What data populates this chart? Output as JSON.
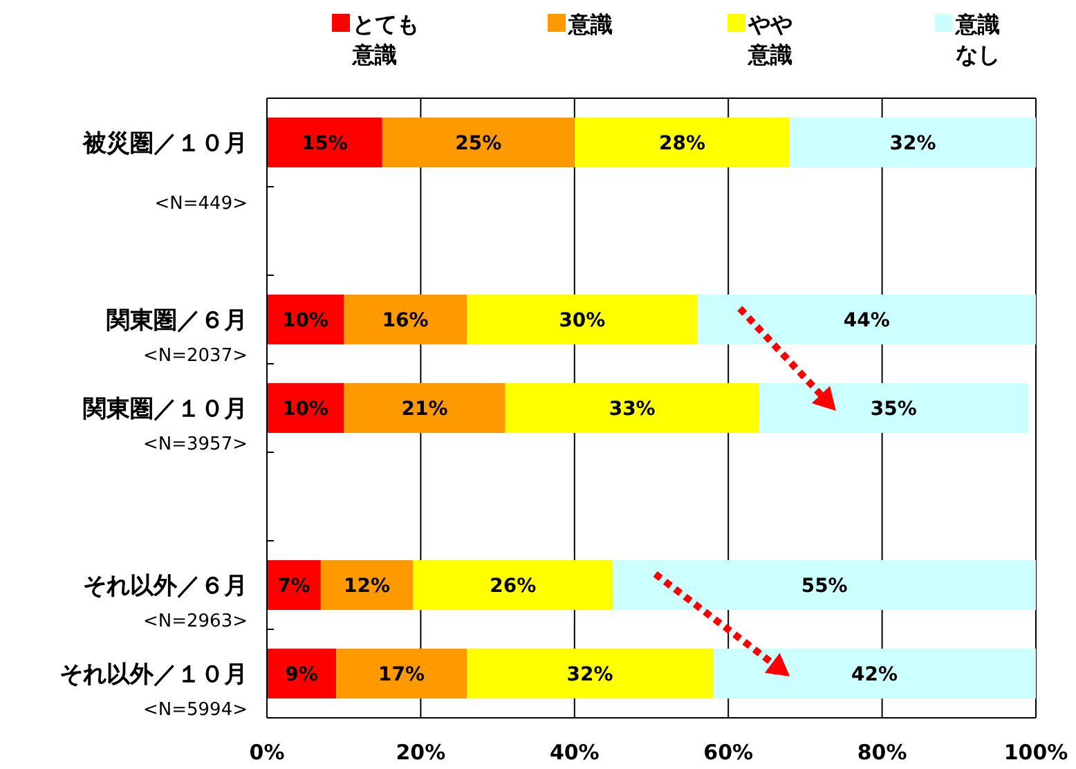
{
  "chart_data": {
    "type": "bar",
    "orientation": "horizontal",
    "stacked": true,
    "categories": [
      "被災圏／１０月\n<N=449>",
      null,
      "関東圏／６月\n<N=2037>",
      "関東圏／１０月\n<N=3957>",
      null,
      "それ以外／６月\n<N=2963>",
      "それ以外／１０月\n<N=5994>"
    ],
    "series": [
      {
        "name": "とても意識",
        "color": "#ff0000",
        "values": [
          15,
          null,
          10,
          10,
          null,
          7,
          9
        ],
        "value_labels": [
          "15%",
          null,
          "10%",
          "10%",
          null,
          "7%",
          "9%"
        ]
      },
      {
        "name": "意識",
        "color": "#ff9900",
        "values": [
          25,
          null,
          16,
          21,
          null,
          12,
          17
        ],
        "value_labels": [
          "25%",
          null,
          "16%",
          "21%",
          null,
          "12%",
          "17%"
        ]
      },
      {
        "name": "やや意識",
        "color": "#ffff00",
        "values": [
          28,
          null,
          30,
          33,
          null,
          26,
          32
        ],
        "value_labels": [
          "28%",
          null,
          "30%",
          "33%",
          null,
          "26%",
          "32%"
        ]
      },
      {
        "name": "意識なし",
        "color": "#ccffff",
        "values": [
          32,
          null,
          44,
          35,
          null,
          55,
          42
        ],
        "value_labels": [
          "32%",
          null,
          "44%",
          "35%",
          null,
          "55%",
          "42%"
        ]
      }
    ],
    "xlim": [
      0,
      100
    ],
    "xticks": [
      {
        "value": 0,
        "label": "0%"
      },
      {
        "value": 20,
        "label": "20%"
      },
      {
        "value": 40,
        "label": "40%"
      },
      {
        "value": 60,
        "label": "60%"
      },
      {
        "value": 80,
        "label": "80%"
      },
      {
        "value": 100,
        "label": "100%"
      }
    ],
    "grid": "x",
    "legend": "top"
  }
}
